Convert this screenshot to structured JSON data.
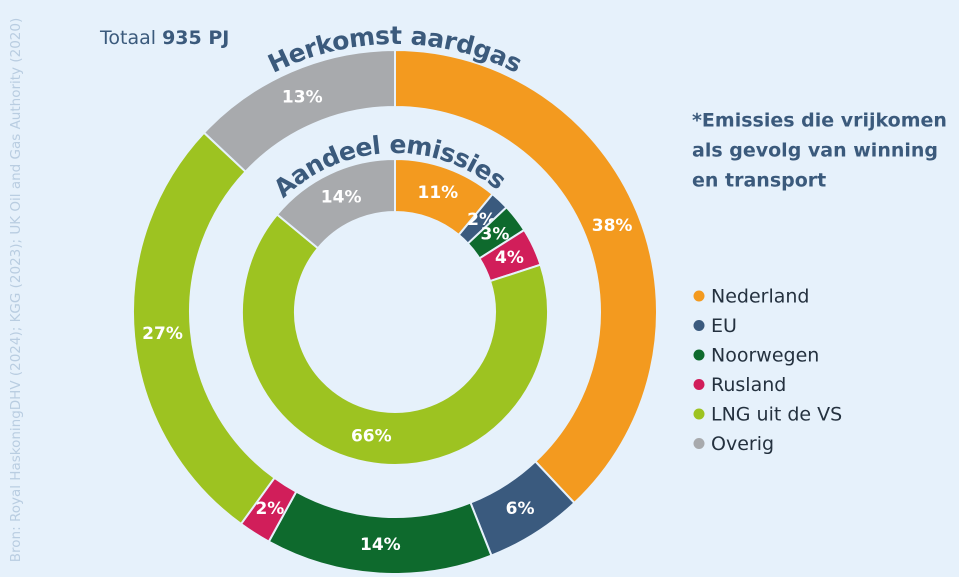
{
  "chart_data": {
    "type": "donut",
    "total_label": "Totaal",
    "total_value": "935 PJ",
    "source": "Bron: Royal HaskoningDHV (2024); KGG (2023); UK Oil and Gas Authority (2020)",
    "note": [
      "*Emissies die vrijkomen",
      "als gevolg van winning",
      "en transport"
    ],
    "footnote_mark": "*",
    "categories": [
      "Nederland",
      "EU",
      "Noorwegen",
      "Rusland",
      "LNG uit de VS",
      "Overig"
    ],
    "colors": [
      "#f39a1f",
      "#3a5a7e",
      "#0e6a2d",
      "#d11e5a",
      "#9dc321",
      "#a8aaad"
    ],
    "series": [
      {
        "name": "Herkomst aardgas",
        "values": [
          38,
          6,
          14,
          2,
          27,
          13
        ],
        "value_labels": [
          "38%",
          "6%",
          "14%",
          "2%",
          "27%",
          "13%"
        ]
      },
      {
        "name": "Aandeel emissies",
        "values": [
          11,
          2,
          3,
          4,
          66,
          14
        ],
        "value_labels": [
          "11%",
          "2%",
          "3%",
          "4%",
          "66%",
          "14%"
        ]
      }
    ],
    "legend": "right"
  }
}
